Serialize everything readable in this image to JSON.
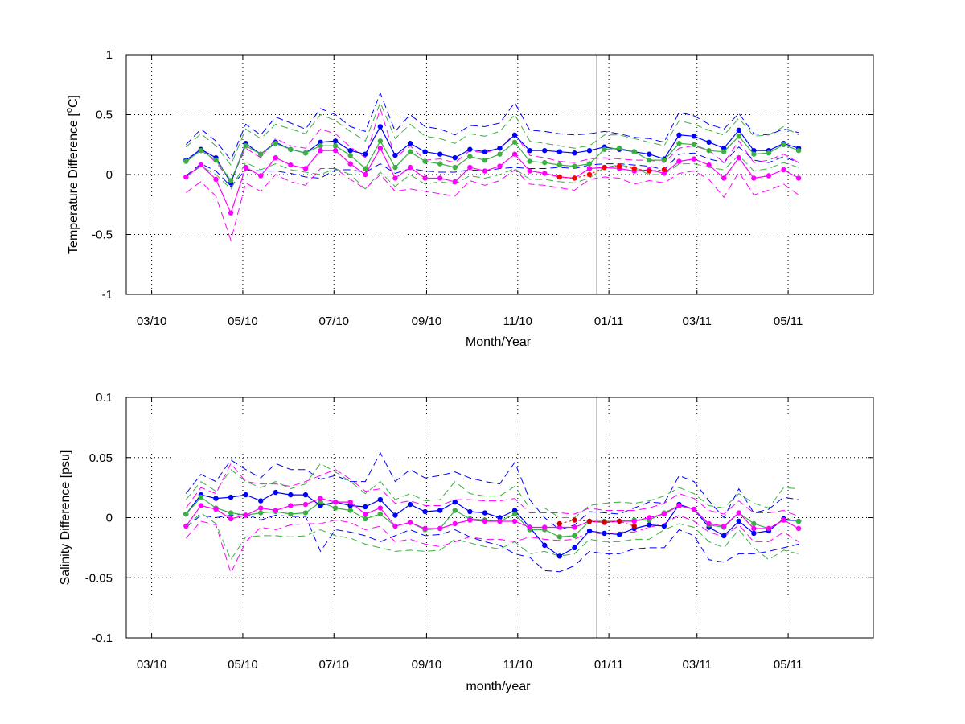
{
  "chart_data": [
    {
      "type": "line",
      "ylabel_main": "Temperature Difference [",
      "ylabel_sup": "o",
      "ylabel_tail": "C]",
      "xlabel": "Month/Year",
      "xlim": [
        "2010-02-12",
        "2011-06-27"
      ],
      "ylim": [
        -1,
        1
      ],
      "yticks": [
        -1,
        -0.5,
        0,
        0.5,
        1
      ],
      "ytick_labels": [
        "-1",
        "-0.5",
        "0",
        "0.5",
        "1"
      ],
      "xticks": [
        "2010-03-01",
        "2010-05-01",
        "2010-07-01",
        "2010-09-01",
        "2010-11-01",
        "2011-01-01",
        "2011-03-01",
        "2011-05-01"
      ],
      "xtick_labels": [
        "03/10",
        "05/10",
        "07/10",
        "09/10",
        "11/10",
        "01/11",
        "03/11",
        "05/11"
      ],
      "grid": true,
      "vline_x": "2010-12-24",
      "x": [
        "2010-03-24",
        "2010-04-03",
        "2010-04-13",
        "2010-04-23",
        "2010-05-03",
        "2010-05-13",
        "2010-05-23",
        "2010-06-02",
        "2010-06-12",
        "2010-06-22",
        "2010-07-02",
        "2010-07-12",
        "2010-07-22",
        "2010-08-01",
        "2010-08-11",
        "2010-08-21",
        "2010-08-31",
        "2010-09-10",
        "2010-09-20",
        "2010-09-30",
        "2010-10-10",
        "2010-10-20",
        "2010-10-30",
        "2010-11-09",
        "2010-11-19",
        "2010-11-29",
        "2010-12-09",
        "2010-12-19",
        "2010-12-29",
        "2011-01-08",
        "2011-01-18",
        "2011-01-28",
        "2011-02-07",
        "2011-02-17",
        "2011-02-27",
        "2011-03-09",
        "2011-03-19",
        "2011-03-29",
        "2011-04-08",
        "2011-04-18",
        "2011-04-28",
        "2011-05-08"
      ],
      "series": [
        {
          "color": "#0000ff",
          "values": [
            0.12,
            0.21,
            0.14,
            -0.07,
            0.26,
            0.17,
            0.27,
            0.21,
            0.18,
            0.27,
            0.28,
            0.2,
            0.17,
            0.4,
            0.16,
            0.26,
            0.19,
            0.17,
            0.14,
            0.21,
            0.19,
            0.22,
            0.33,
            0.2,
            0.2,
            0.19,
            0.18,
            0.2,
            0.23,
            0.21,
            0.19,
            0.17,
            0.13,
            0.33,
            0.32,
            0.27,
            0.22,
            0.37,
            0.2,
            0.2,
            0.26,
            0.22
          ],
          "upper": [
            0.25,
            0.38,
            0.28,
            0.12,
            0.42,
            0.33,
            0.48,
            0.43,
            0.38,
            0.55,
            0.5,
            0.4,
            0.36,
            0.68,
            0.36,
            0.5,
            0.4,
            0.38,
            0.33,
            0.41,
            0.4,
            0.43,
            0.6,
            0.37,
            0.36,
            0.34,
            0.33,
            0.34,
            0.36,
            0.34,
            0.31,
            0.3,
            0.27,
            0.52,
            0.49,
            0.42,
            0.38,
            0.51,
            0.34,
            0.33,
            0.38,
            0.35
          ],
          "lower": [
            -0.01,
            0.09,
            0.03,
            -0.1,
            0.04,
            0.03,
            0.03,
            0.01,
            -0.02,
            -0.03,
            0.04,
            0.04,
            0.02,
            0.09,
            0.01,
            0.05,
            0.03,
            0.02,
            0.02,
            0.04,
            0.03,
            0.05,
            0.06,
            0.05,
            0.05,
            0.06,
            0.05,
            0.08,
            0.09,
            0.09,
            0.08,
            0.07,
            0.04,
            0.17,
            0.18,
            0.13,
            0.1,
            0.23,
            0.12,
            0.1,
            0.15,
            0.1
          ]
        },
        {
          "color": "#3cb043",
          "values": [
            0.11,
            0.2,
            0.12,
            -0.05,
            0.24,
            0.17,
            0.26,
            0.21,
            0.18,
            0.24,
            0.24,
            0.16,
            0.05,
            0.28,
            0.06,
            0.19,
            0.11,
            0.09,
            0.06,
            0.15,
            0.12,
            0.17,
            0.27,
            0.11,
            0.1,
            0.08,
            0.07,
            0.09,
            0.21,
            0.22,
            0.19,
            0.12,
            0.12,
            0.26,
            0.25,
            0.2,
            0.19,
            0.32,
            0.17,
            0.18,
            0.25,
            0.2
          ],
          "upper": [
            0.23,
            0.34,
            0.24,
            0.08,
            0.38,
            0.3,
            0.42,
            0.38,
            0.34,
            0.5,
            0.45,
            0.36,
            0.28,
            0.6,
            0.3,
            0.42,
            0.32,
            0.3,
            0.26,
            0.34,
            0.32,
            0.36,
            0.5,
            0.28,
            0.26,
            0.24,
            0.22,
            0.24,
            0.33,
            0.33,
            0.3,
            0.27,
            0.24,
            0.45,
            0.42,
            0.37,
            0.33,
            0.47,
            0.32,
            0.33,
            0.4,
            0.33
          ],
          "lower": [
            -0.02,
            0.07,
            0.0,
            -0.12,
            0.1,
            0.04,
            0.09,
            0.04,
            0.02,
            0.0,
            0.05,
            0.0,
            -0.12,
            0.02,
            -0.1,
            0.0,
            -0.08,
            -0.06,
            -0.08,
            -0.01,
            -0.03,
            0.0,
            0.05,
            -0.04,
            -0.04,
            -0.06,
            -0.07,
            -0.03,
            0.06,
            0.08,
            0.06,
            0.0,
            0.0,
            0.09,
            0.09,
            0.06,
            0.04,
            0.16,
            0.03,
            0.05,
            0.1,
            0.06
          ]
        },
        {
          "color": "#ff00ff",
          "values": [
            -0.02,
            0.08,
            -0.04,
            -0.32,
            0.06,
            -0.01,
            0.14,
            0.08,
            0.05,
            0.2,
            0.2,
            0.09,
            0.0,
            0.22,
            -0.03,
            0.06,
            -0.03,
            -0.03,
            -0.06,
            0.06,
            0.03,
            0.07,
            0.17,
            0.03,
            0.01,
            -0.02,
            -0.03,
            0.05,
            0.06,
            0.05,
            0.03,
            0.04,
            0.01,
            0.11,
            0.13,
            0.08,
            -0.03,
            0.14,
            -0.03,
            -0.01,
            0.04,
            -0.03
          ],
          "upper": [
            0.1,
            0.22,
            0.1,
            -0.05,
            0.22,
            0.14,
            0.3,
            0.24,
            0.22,
            0.38,
            0.34,
            0.23,
            0.14,
            0.55,
            0.14,
            0.24,
            0.12,
            0.13,
            0.1,
            0.2,
            0.18,
            0.22,
            0.34,
            0.16,
            0.14,
            0.11,
            0.1,
            0.13,
            0.14,
            0.13,
            0.12,
            0.12,
            0.1,
            0.22,
            0.24,
            0.2,
            0.1,
            0.28,
            0.1,
            0.12,
            0.17,
            0.1
          ],
          "lower": [
            -0.15,
            -0.06,
            -0.18,
            -0.55,
            -0.07,
            -0.14,
            0.0,
            -0.06,
            -0.09,
            0.05,
            0.05,
            -0.04,
            -0.12,
            0.0,
            -0.14,
            -0.12,
            -0.14,
            -0.16,
            -0.18,
            -0.05,
            -0.09,
            -0.05,
            0.04,
            -0.08,
            -0.09,
            -0.11,
            -0.13,
            -0.04,
            -0.02,
            -0.03,
            -0.08,
            -0.05,
            -0.07,
            0.01,
            0.03,
            -0.04,
            -0.19,
            0.02,
            -0.17,
            -0.13,
            -0.08,
            -0.17
          ]
        }
      ],
      "red_points": {
        "color": "#ff0000",
        "x": [
          "2010-11-29",
          "2010-12-09",
          "2010-12-19",
          "2010-12-29",
          "2011-01-08",
          "2011-01-18",
          "2011-01-28",
          "2011-02-07"
        ],
        "values": [
          -0.02,
          -0.03,
          0.0,
          0.06,
          0.07,
          0.05,
          0.03,
          0.04
        ]
      }
    },
    {
      "type": "line",
      "ylabel": "Salinity Difference [psu]",
      "xlabel": "month/year",
      "xlim": [
        "2010-02-12",
        "2011-06-27"
      ],
      "ylim": [
        -0.1,
        0.1
      ],
      "yticks": [
        -0.1,
        -0.05,
        0,
        0.05,
        0.1
      ],
      "ytick_labels": [
        "-0.1",
        "-0.05",
        "0",
        "0.05",
        "0.1"
      ],
      "xticks": [
        "2010-03-01",
        "2010-05-01",
        "2010-07-01",
        "2010-09-01",
        "2010-11-01",
        "2011-01-01",
        "2011-03-01",
        "2011-05-01"
      ],
      "xtick_labels": [
        "03/10",
        "05/10",
        "07/10",
        "09/10",
        "11/10",
        "01/11",
        "03/11",
        "05/11"
      ],
      "grid": true,
      "vline_x": "2010-12-24",
      "x": [
        "2010-03-24",
        "2010-04-03",
        "2010-04-13",
        "2010-04-23",
        "2010-05-03",
        "2010-05-13",
        "2010-05-23",
        "2010-06-02",
        "2010-06-12",
        "2010-06-22",
        "2010-07-02",
        "2010-07-12",
        "2010-07-22",
        "2010-08-01",
        "2010-08-11",
        "2010-08-21",
        "2010-08-31",
        "2010-09-10",
        "2010-09-20",
        "2010-09-30",
        "2010-10-10",
        "2010-10-20",
        "2010-10-30",
        "2010-11-09",
        "2010-11-19",
        "2010-11-29",
        "2010-12-09",
        "2010-12-19",
        "2010-12-29",
        "2011-01-08",
        "2011-01-18",
        "2011-01-28",
        "2011-02-07",
        "2011-02-17",
        "2011-02-27",
        "2011-03-09",
        "2011-03-19",
        "2011-03-29",
        "2011-04-08",
        "2011-04-18",
        "2011-04-28",
        "2011-05-08"
      ],
      "series": [
        {
          "color": "#0000ff",
          "values": [
            0.003,
            0.019,
            0.016,
            0.017,
            0.019,
            0.014,
            0.021,
            0.019,
            0.019,
            0.01,
            0.013,
            0.01,
            0.009,
            0.015,
            0.002,
            0.011,
            0.005,
            0.006,
            0.013,
            0.005,
            0.004,
            0.0,
            0.006,
            -0.008,
            -0.023,
            -0.032,
            -0.025,
            -0.011,
            -0.013,
            -0.014,
            -0.009,
            -0.006,
            -0.007,
            0.011,
            0.007,
            -0.008,
            -0.015,
            -0.003,
            -0.013,
            -0.011,
            -0.001,
            -0.003
          ],
          "upper": [
            0.02,
            0.036,
            0.03,
            0.048,
            0.04,
            0.033,
            0.045,
            0.04,
            0.04,
            0.032,
            0.035,
            0.03,
            0.03,
            0.054,
            0.03,
            0.04,
            0.033,
            0.035,
            0.038,
            0.033,
            0.03,
            0.028,
            0.046,
            0.015,
            0.0,
            -0.01,
            -0.006,
            0.005,
            0.004,
            0.003,
            0.008,
            0.013,
            0.012,
            0.035,
            0.03,
            0.014,
            0.0,
            0.024,
            0.004,
            0.007,
            0.017,
            0.015
          ],
          "lower": [
            -0.008,
            0.002,
            0.0,
            0.002,
            0.003,
            -0.002,
            0.002,
            0.001,
            0.001,
            -0.028,
            -0.01,
            -0.012,
            -0.015,
            -0.02,
            -0.015,
            -0.01,
            -0.015,
            -0.014,
            -0.01,
            -0.016,
            -0.02,
            -0.023,
            -0.03,
            -0.033,
            -0.044,
            -0.045,
            -0.04,
            -0.028,
            -0.03,
            -0.03,
            -0.026,
            -0.025,
            -0.025,
            -0.01,
            -0.015,
            -0.035,
            -0.037,
            -0.03,
            -0.03,
            -0.028,
            -0.025,
            -0.022
          ]
        },
        {
          "color": "#3cb043",
          "values": [
            0.003,
            0.017,
            0.008,
            0.004,
            0.002,
            0.004,
            0.005,
            0.003,
            0.004,
            0.013,
            0.008,
            0.006,
            -0.001,
            0.003,
            -0.007,
            -0.004,
            -0.01,
            -0.009,
            0.006,
            -0.001,
            -0.002,
            -0.003,
            0.003,
            -0.01,
            -0.01,
            -0.016,
            -0.015,
            -0.003,
            -0.003,
            -0.003,
            -0.002,
            -0.002,
            0.004,
            0.01,
            0.007,
            -0.006,
            -0.008,
            0.004,
            -0.005,
            -0.009,
            -0.002,
            -0.003
          ],
          "upper": [
            0.015,
            0.03,
            0.022,
            0.04,
            0.03,
            0.025,
            0.03,
            0.024,
            0.028,
            0.045,
            0.038,
            0.03,
            0.02,
            0.03,
            0.015,
            0.02,
            0.014,
            0.015,
            0.03,
            0.02,
            0.018,
            0.018,
            0.026,
            0.008,
            0.008,
            0.0,
            0.0,
            0.01,
            0.012,
            0.013,
            0.012,
            0.014,
            0.018,
            0.025,
            0.02,
            0.01,
            0.008,
            0.02,
            0.012,
            0.008,
            0.025,
            0.024
          ],
          "lower": [
            -0.008,
            0.004,
            -0.005,
            -0.035,
            -0.016,
            -0.015,
            -0.015,
            -0.016,
            -0.015,
            -0.01,
            -0.015,
            -0.017,
            -0.022,
            -0.025,
            -0.028,
            -0.027,
            -0.028,
            -0.027,
            -0.018,
            -0.021,
            -0.024,
            -0.026,
            -0.02,
            -0.03,
            -0.028,
            -0.032,
            -0.03,
            -0.018,
            -0.02,
            -0.02,
            -0.018,
            -0.018,
            -0.01,
            -0.005,
            -0.008,
            -0.02,
            -0.025,
            -0.01,
            -0.025,
            -0.035,
            -0.027,
            -0.03
          ]
        },
        {
          "color": "#ff00ff",
          "values": [
            -0.007,
            0.01,
            0.007,
            -0.001,
            0.002,
            0.008,
            0.006,
            0.01,
            0.011,
            0.016,
            0.013,
            0.013,
            0.003,
            0.008,
            -0.007,
            -0.004,
            -0.009,
            -0.009,
            -0.005,
            -0.002,
            -0.003,
            -0.003,
            -0.003,
            -0.008,
            -0.008,
            -0.008,
            -0.008,
            -0.003,
            -0.004,
            -0.003,
            -0.003,
            0.0,
            0.003,
            0.01,
            0.007,
            -0.005,
            -0.007,
            0.004,
            -0.009,
            -0.009,
            -0.002,
            -0.009
          ],
          "upper": [
            0.008,
            0.025,
            0.02,
            0.045,
            0.03,
            0.028,
            0.028,
            0.026,
            0.03,
            0.035,
            0.04,
            0.032,
            0.022,
            0.024,
            0.012,
            0.014,
            0.01,
            0.01,
            0.015,
            0.015,
            0.014,
            0.014,
            0.016,
            0.004,
            0.004,
            0.004,
            0.003,
            0.008,
            0.006,
            0.006,
            0.006,
            0.008,
            0.012,
            0.02,
            0.016,
            0.006,
            0.003,
            0.014,
            0.004,
            0.004,
            0.006,
            0.001
          ],
          "lower": [
            -0.017,
            -0.003,
            -0.006,
            -0.046,
            -0.02,
            -0.008,
            -0.01,
            -0.006,
            -0.005,
            -0.005,
            -0.002,
            -0.004,
            -0.01,
            -0.007,
            -0.02,
            -0.018,
            -0.022,
            -0.024,
            -0.02,
            -0.016,
            -0.018,
            -0.018,
            -0.02,
            -0.016,
            -0.018,
            -0.019,
            -0.018,
            -0.012,
            -0.014,
            -0.012,
            -0.012,
            -0.008,
            -0.005,
            0.002,
            -0.003,
            -0.012,
            -0.016,
            -0.006,
            -0.02,
            -0.02,
            -0.012,
            -0.02
          ]
        }
      ],
      "red_points": {
        "color": "#cc0000",
        "x": [
          "2010-11-29",
          "2010-12-09",
          "2010-12-19",
          "2010-12-29",
          "2011-01-08",
          "2011-01-18"
        ],
        "values": [
          -0.005,
          -0.002,
          -0.003,
          -0.004,
          -0.003,
          -0.007
        ]
      }
    }
  ]
}
